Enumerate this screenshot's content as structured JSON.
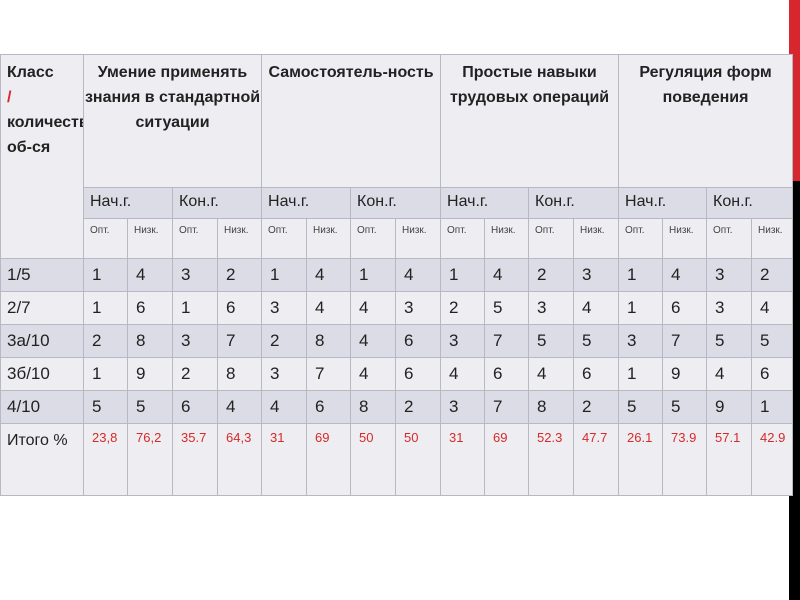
{
  "header": {
    "first_line1": "Класс",
    "first_slash": "/",
    "first_rest": "количество об-ся",
    "groups": [
      "Умение применять знания в стандартной ситуации",
      "Самостоятель-ность",
      "Простые навыки трудовых операций",
      "Регуляция форм поведения"
    ],
    "periods": [
      "Нач.г.",
      "Кон.г."
    ],
    "levels": [
      "Опт.",
      "Низк."
    ],
    "level_alt": "Низк."
  },
  "rows": [
    {
      "label": "1/5",
      "values": [
        "1",
        "4",
        "3",
        "2",
        "1",
        "4",
        "1",
        "4",
        "1",
        "4",
        "2",
        "3",
        "1",
        "4",
        "3",
        "2"
      ]
    },
    {
      "label": "2/7",
      "values": [
        "1",
        "6",
        "1",
        "6",
        "3",
        "4",
        "4",
        "3",
        "2",
        "5",
        "3",
        "4",
        "1",
        "6",
        "3",
        "4"
      ]
    },
    {
      "label": "3а/10",
      "values": [
        "2",
        "8",
        "3",
        "7",
        "2",
        "8",
        "4",
        "6",
        "3",
        "7",
        "5",
        "5",
        "3",
        "7",
        "5",
        "5"
      ]
    },
    {
      "label": "3б/10",
      "values": [
        "1",
        "9",
        "2",
        "8",
        "3",
        "7",
        "4",
        "6",
        "4",
        "6",
        "4",
        "6",
        "1",
        "9",
        "4",
        "6"
      ]
    },
    {
      "label": "4/10",
      "values": [
        "5",
        "5",
        "6",
        "4",
        "4",
        "6",
        "8",
        "2",
        "3",
        "7",
        "8",
        "2",
        "5",
        "5",
        "9",
        "1"
      ]
    }
  ],
  "total": {
    "label": "Итого %",
    "values": [
      "23,8",
      "76,2",
      "35.7",
      "64,3",
      "31",
      "69",
      "50",
      "50",
      "31",
      "69",
      "52.3",
      "47.7",
      "26.1",
      "73.9",
      "57.1",
      "42.9"
    ]
  },
  "colors": {
    "accent": "#d8262f",
    "total_text": "#d42a2a"
  }
}
